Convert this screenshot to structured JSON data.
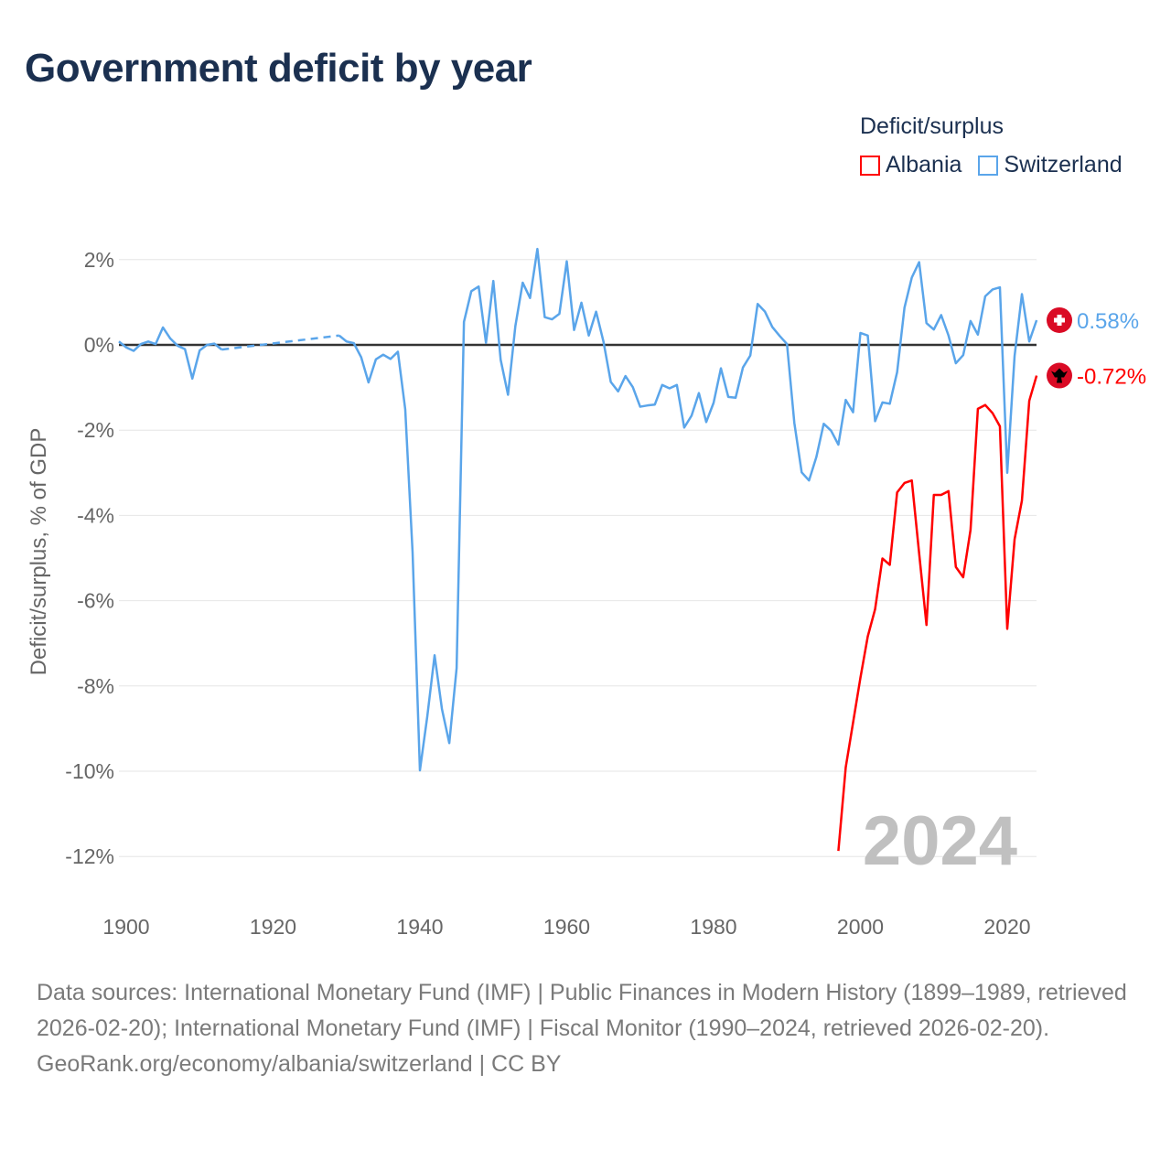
{
  "title": "Government deficit by year",
  "legend": {
    "title": "Deficit/surplus",
    "items": [
      {
        "label": "Albania",
        "color": "#ff0000"
      },
      {
        "label": "Switzerland",
        "color": "#5aa5ea"
      }
    ]
  },
  "watermark_year": "2024",
  "footer": {
    "sources": "Data sources: International Monetary Fund (IMF) | Public Finances in Modern History (1899–1989, retrieved 2026-02-20); International Monetary Fund (IMF) | Fiscal Monitor (1990–2024, retrieved 2026-02-20).",
    "credit": "GeoRank.org/economy/albania/switzerland | CC BY"
  },
  "chart_data": {
    "type": "line",
    "title": "Government deficit by year",
    "xlabel": "",
    "ylabel": "Deficit/surplus, % of GDP",
    "xlim": [
      1899,
      2024
    ],
    "ylim": [
      -13,
      2.4
    ],
    "x_ticks": [
      "1900",
      "1920",
      "1940",
      "1960",
      "1980",
      "2000",
      "2020"
    ],
    "y_ticks": [
      {
        "value": 2,
        "label": "2%"
      },
      {
        "value": 0,
        "label": "0%"
      },
      {
        "value": -2,
        "label": "-2%"
      },
      {
        "value": -4,
        "label": "-4%"
      },
      {
        "value": -6,
        "label": "-6%"
      },
      {
        "value": -8,
        "label": "-8%"
      },
      {
        "value": -10,
        "label": "-10%"
      },
      {
        "value": -12,
        "label": "-12%"
      }
    ],
    "grid": true,
    "legend_position": "top-right",
    "series": [
      {
        "name": "Switzerland",
        "color": "#5aa5ea",
        "start_year": 1899,
        "end_label": "0.58%",
        "values": [
          0.08,
          -0.06,
          -0.14,
          0.02,
          0.08,
          0.02,
          0.41,
          0.15,
          -0.02,
          -0.1,
          -0.79,
          -0.13,
          0.0,
          0.03,
          -0.11,
          null,
          null,
          null,
          null,
          null,
          null,
          null,
          null,
          null,
          null,
          null,
          null,
          null,
          null,
          null,
          0.22,
          0.08,
          0.04,
          -0.29,
          -0.88,
          -0.34,
          -0.23,
          -0.33,
          -0.16,
          -1.51,
          -4.86,
          -9.98,
          -8.72,
          -7.28,
          -8.54,
          -9.34,
          -7.58,
          0.54,
          1.26,
          1.37,
          0.05,
          1.5,
          -0.35,
          -1.17,
          0.44,
          1.46,
          1.1,
          2.25,
          0.65,
          0.6,
          0.73,
          1.96,
          0.35,
          0.99,
          0.22,
          0.78,
          0.08,
          -0.87,
          -1.09,
          -0.73,
          -0.99,
          -1.45,
          -1.42,
          -1.4,
          -0.94,
          -1.02,
          -0.94,
          -1.94,
          -1.66,
          -1.13,
          -1.81,
          -1.36,
          -0.55,
          -1.22,
          -1.24,
          -0.53,
          -0.25,
          0.96,
          0.78,
          0.42,
          0.21,
          0.02,
          -1.83,
          -2.99,
          -3.18,
          -2.63,
          -1.85,
          -2.01,
          -2.34,
          -1.29,
          -1.58,
          0.28,
          0.22,
          -1.79,
          -1.35,
          -1.38,
          -0.64,
          0.87,
          1.58,
          1.94,
          0.51,
          0.36,
          0.7,
          0.22,
          -0.43,
          -0.24,
          0.56,
          0.24,
          1.14,
          1.3,
          1.35,
          -3.0,
          -0.26,
          1.19,
          0.08,
          0.58
        ]
      },
      {
        "name": "Albania",
        "color": "#ff0000",
        "start_year": 1997,
        "end_label": "-0.72%",
        "values": [
          -11.87,
          -9.91,
          -8.86,
          -7.81,
          -6.84,
          -6.2,
          -5.01,
          -5.16,
          -3.46,
          -3.24,
          -3.18,
          -4.89,
          -6.57,
          -3.52,
          -3.52,
          -3.43,
          -5.21,
          -5.45,
          -4.34,
          -1.5,
          -1.41,
          -1.6,
          -1.91,
          -6.66,
          -4.56,
          -3.65,
          -1.31,
          -0.72
        ]
      }
    ]
  }
}
